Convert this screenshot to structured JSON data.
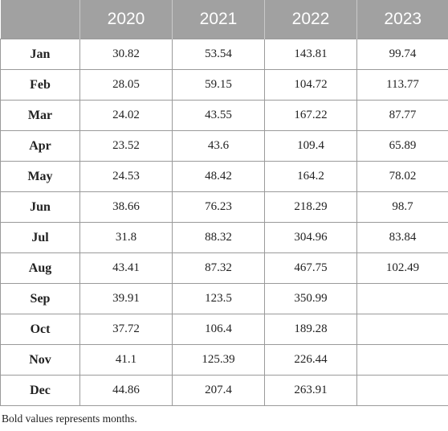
{
  "table": {
    "columns": [
      "",
      "2020",
      "2021",
      "2022",
      "2023"
    ],
    "rows": [
      {
        "month": "Jan",
        "values": [
          "30.82",
          "53.54",
          "143.81",
          "99.74"
        ]
      },
      {
        "month": "Feb",
        "values": [
          "28.05",
          "59.15",
          "104.72",
          "113.77"
        ]
      },
      {
        "month": "Mar",
        "values": [
          "24.02",
          "43.55",
          "167.22",
          "87.77"
        ]
      },
      {
        "month": "Apr",
        "values": [
          "23.52",
          "43.6",
          "109.4",
          "65.89"
        ]
      },
      {
        "month": "May",
        "values": [
          "24.53",
          "48.42",
          "164.2",
          "78.02"
        ]
      },
      {
        "month": "Jun",
        "values": [
          "38.66",
          "76.23",
          "218.29",
          "98.7"
        ]
      },
      {
        "month": "Jul",
        "values": [
          "31.8",
          "88.32",
          "304.96",
          "83.84"
        ]
      },
      {
        "month": "Aug",
        "values": [
          "43.41",
          "87.32",
          "467.75",
          "102.49"
        ]
      },
      {
        "month": "Sep",
        "values": [
          "39.91",
          "123.5",
          "350.99",
          ""
        ]
      },
      {
        "month": "Oct",
        "values": [
          "37.72",
          "106.4",
          "189.28",
          ""
        ]
      },
      {
        "month": "Nov",
        "values": [
          "41.1",
          "125.39",
          "226.44",
          ""
        ]
      },
      {
        "month": "Dec",
        "values": [
          "44.86",
          "207.4",
          "263.91",
          ""
        ]
      }
    ]
  },
  "footnote": "Bold values represents months.",
  "colors": {
    "header_background": "#a1a1a1",
    "header_text": "#ffffff",
    "grid_lines": "#9a9a9a"
  }
}
